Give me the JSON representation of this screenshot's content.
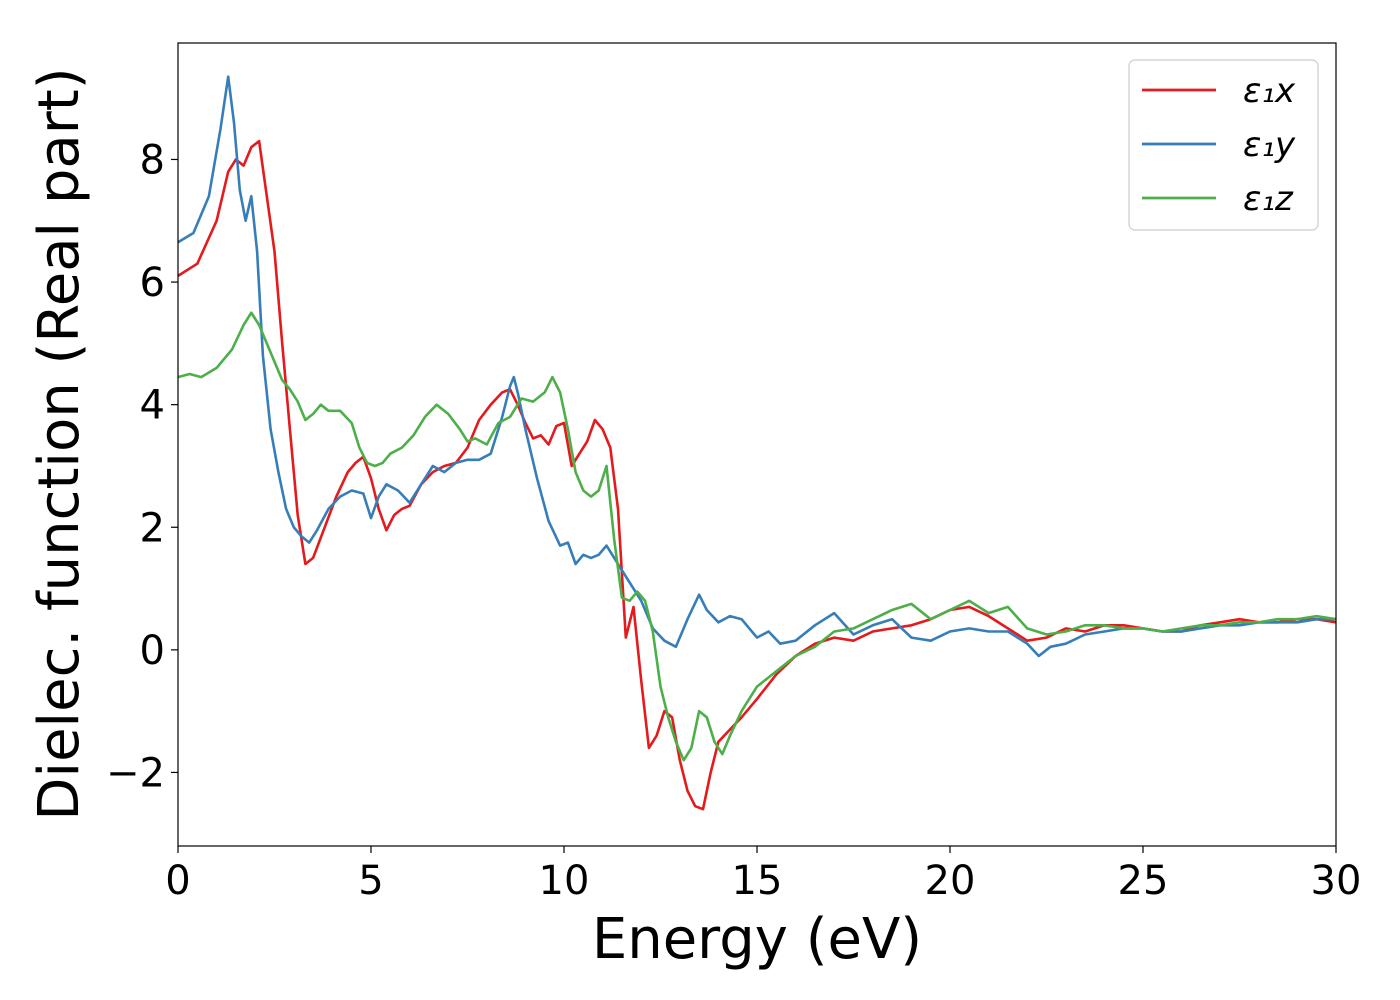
{
  "chart_data": {
    "type": "line",
    "xlabel": "Energy (eV)",
    "ylabel": "Dielec. function (Real part)",
    "xlim": [
      0,
      30
    ],
    "ylim": [
      -3.2,
      9.9
    ],
    "xticks": [
      0,
      5,
      10,
      15,
      20,
      25,
      30
    ],
    "yticks": [
      -2,
      0,
      2,
      4,
      6,
      8
    ],
    "grid": false,
    "legend_position": "top-right",
    "series": [
      {
        "name": "ε₁x",
        "color": "#e41a1c",
        "x": [
          0,
          0.5,
          1.0,
          1.3,
          1.5,
          1.7,
          1.9,
          2.1,
          2.3,
          2.5,
          2.7,
          2.9,
          3.1,
          3.3,
          3.5,
          3.8,
          4.1,
          4.4,
          4.6,
          4.8,
          5.0,
          5.2,
          5.4,
          5.6,
          5.8,
          6.0,
          6.3,
          6.6,
          6.9,
          7.2,
          7.5,
          7.8,
          8.1,
          8.4,
          8.6,
          8.8,
          9.0,
          9.2,
          9.4,
          9.6,
          9.8,
          10.0,
          10.2,
          10.4,
          10.6,
          10.8,
          11.0,
          11.2,
          11.4,
          11.6,
          11.8,
          12.0,
          12.2,
          12.4,
          12.6,
          12.8,
          13.0,
          13.2,
          13.4,
          13.6,
          13.8,
          14.0,
          14.3,
          14.6,
          15.0,
          15.5,
          16.0,
          16.5,
          17.0,
          17.5,
          18.0,
          18.5,
          19.0,
          19.5,
          20.0,
          20.5,
          21.0,
          21.5,
          22.0,
          22.5,
          23.0,
          23.5,
          24.0,
          24.5,
          25.0,
          25.5,
          26.0,
          26.5,
          27.0,
          27.5,
          28.0,
          28.5,
          29.0,
          29.5,
          30.0
        ],
        "values": [
          6.1,
          6.3,
          7.0,
          7.8,
          8.0,
          7.9,
          8.2,
          8.3,
          7.4,
          6.5,
          5.0,
          3.6,
          2.2,
          1.4,
          1.5,
          2.0,
          2.5,
          2.9,
          3.05,
          3.15,
          2.8,
          2.3,
          1.95,
          2.2,
          2.3,
          2.35,
          2.7,
          2.9,
          3.0,
          3.05,
          3.3,
          3.75,
          4.0,
          4.2,
          4.25,
          4.0,
          3.7,
          3.45,
          3.5,
          3.35,
          3.65,
          3.7,
          3.0,
          3.2,
          3.4,
          3.75,
          3.6,
          3.3,
          2.3,
          0.2,
          0.7,
          -0.5,
          -1.6,
          -1.4,
          -1.0,
          -1.1,
          -1.8,
          -2.3,
          -2.55,
          -2.6,
          -2.0,
          -1.5,
          -1.3,
          -1.1,
          -0.8,
          -0.4,
          -0.1,
          0.1,
          0.2,
          0.15,
          0.3,
          0.35,
          0.4,
          0.5,
          0.65,
          0.7,
          0.55,
          0.35,
          0.15,
          0.2,
          0.35,
          0.3,
          0.4,
          0.4,
          0.35,
          0.3,
          0.3,
          0.4,
          0.45,
          0.5,
          0.45,
          0.45,
          0.5,
          0.5,
          0.45
        ]
      },
      {
        "name": "ε₁y",
        "color": "#377eb8",
        "x": [
          0,
          0.4,
          0.8,
          1.1,
          1.3,
          1.45,
          1.6,
          1.75,
          1.9,
          2.05,
          2.2,
          2.4,
          2.6,
          2.8,
          3.0,
          3.2,
          3.4,
          3.6,
          3.9,
          4.2,
          4.5,
          4.8,
          5.0,
          5.2,
          5.4,
          5.7,
          6.0,
          6.3,
          6.6,
          6.9,
          7.2,
          7.5,
          7.8,
          8.1,
          8.4,
          8.6,
          8.7,
          8.8,
          9.0,
          9.3,
          9.6,
          9.9,
          10.1,
          10.3,
          10.5,
          10.7,
          10.9,
          11.1,
          11.4,
          11.7,
          12.0,
          12.3,
          12.6,
          12.9,
          13.2,
          13.5,
          13.7,
          14.0,
          14.3,
          14.6,
          15.0,
          15.3,
          15.6,
          16.0,
          16.5,
          17.0,
          17.5,
          18.0,
          18.5,
          19.0,
          19.5,
          20.0,
          20.5,
          21.0,
          21.5,
          22.0,
          22.3,
          22.6,
          23.0,
          23.5,
          24.0,
          24.5,
          25.0,
          25.5,
          26.0,
          26.5,
          27.0,
          27.5,
          28.0,
          28.5,
          29.0,
          29.5,
          30.0
        ],
        "values": [
          6.65,
          6.8,
          7.4,
          8.5,
          9.35,
          8.6,
          7.5,
          7.0,
          7.4,
          6.5,
          4.8,
          3.6,
          2.9,
          2.3,
          2.0,
          1.85,
          1.75,
          1.95,
          2.3,
          2.5,
          2.6,
          2.55,
          2.15,
          2.5,
          2.7,
          2.6,
          2.4,
          2.7,
          3.0,
          2.9,
          3.05,
          3.1,
          3.1,
          3.2,
          3.8,
          4.3,
          4.45,
          4.2,
          3.6,
          2.8,
          2.1,
          1.7,
          1.75,
          1.4,
          1.55,
          1.5,
          1.55,
          1.7,
          1.4,
          1.1,
          0.8,
          0.35,
          0.15,
          0.05,
          0.5,
          0.9,
          0.65,
          0.45,
          0.55,
          0.5,
          0.2,
          0.3,
          0.1,
          0.15,
          0.4,
          0.6,
          0.25,
          0.4,
          0.5,
          0.2,
          0.15,
          0.3,
          0.35,
          0.3,
          0.3,
          0.1,
          -0.1,
          0.05,
          0.1,
          0.25,
          0.3,
          0.35,
          0.35,
          0.3,
          0.3,
          0.35,
          0.4,
          0.4,
          0.45,
          0.45,
          0.45,
          0.5,
          0.5
        ]
      },
      {
        "name": "ε₁z",
        "color": "#4daf4a",
        "x": [
          0,
          0.3,
          0.6,
          1.0,
          1.4,
          1.7,
          1.9,
          2.1,
          2.3,
          2.5,
          2.7,
          2.9,
          3.1,
          3.3,
          3.5,
          3.7,
          3.9,
          4.2,
          4.5,
          4.7,
          4.9,
          5.1,
          5.3,
          5.5,
          5.8,
          6.1,
          6.4,
          6.7,
          7.0,
          7.3,
          7.5,
          7.7,
          8.0,
          8.3,
          8.6,
          8.9,
          9.2,
          9.5,
          9.7,
          9.9,
          10.1,
          10.3,
          10.5,
          10.7,
          10.9,
          11.1,
          11.3,
          11.5,
          11.7,
          11.9,
          12.1,
          12.3,
          12.5,
          12.7,
          12.9,
          13.1,
          13.3,
          13.5,
          13.7,
          13.9,
          14.1,
          14.3,
          14.6,
          15.0,
          15.5,
          16.0,
          16.5,
          17.0,
          17.5,
          18.0,
          18.5,
          19.0,
          19.5,
          20.0,
          20.5,
          21.0,
          21.5,
          22.0,
          22.5,
          23.0,
          23.5,
          24.0,
          24.5,
          25.0,
          25.5,
          26.0,
          26.5,
          27.0,
          27.5,
          28.0,
          28.5,
          29.0,
          29.5,
          30.0
        ],
        "values": [
          4.45,
          4.5,
          4.45,
          4.6,
          4.9,
          5.3,
          5.5,
          5.3,
          5.0,
          4.7,
          4.4,
          4.25,
          4.05,
          3.75,
          3.85,
          4.0,
          3.9,
          3.9,
          3.7,
          3.3,
          3.05,
          3.0,
          3.05,
          3.2,
          3.3,
          3.5,
          3.8,
          4.0,
          3.85,
          3.6,
          3.4,
          3.45,
          3.35,
          3.7,
          3.8,
          4.1,
          4.05,
          4.2,
          4.45,
          4.2,
          3.6,
          2.9,
          2.6,
          2.5,
          2.6,
          3.0,
          1.8,
          0.85,
          0.8,
          0.95,
          0.8,
          0.3,
          -0.6,
          -1.1,
          -1.5,
          -1.8,
          -1.6,
          -1.0,
          -1.1,
          -1.5,
          -1.7,
          -1.4,
          -1.0,
          -0.6,
          -0.35,
          -0.1,
          0.05,
          0.3,
          0.35,
          0.5,
          0.65,
          0.75,
          0.5,
          0.65,
          0.8,
          0.6,
          0.7,
          0.35,
          0.25,
          0.3,
          0.4,
          0.4,
          0.35,
          0.35,
          0.3,
          0.35,
          0.4,
          0.4,
          0.45,
          0.45,
          0.5,
          0.5,
          0.55,
          0.5
        ]
      }
    ]
  }
}
